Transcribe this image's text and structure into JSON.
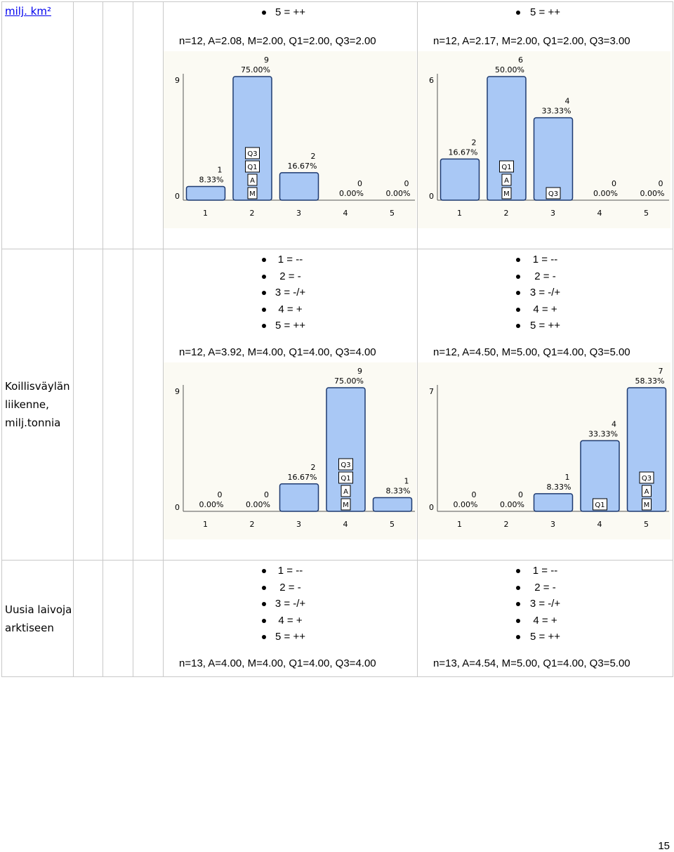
{
  "rows": [
    {
      "label": "milj. km²",
      "label_is_link": true,
      "cells": [
        {
          "scale": [
            "5 = ++"
          ],
          "stats": "n=12, A=2.08, M=2.00, Q1=2.00, Q3=2.00",
          "chart_data": {
            "type": "bar",
            "categories": [
              "1",
              "2",
              "3",
              "4",
              "5"
            ],
            "counts": [
              1,
              9,
              2,
              0,
              0
            ],
            "percents": [
              "8.33%",
              "75.00%",
              "16.67%",
              "0.00%",
              "0.00%"
            ],
            "ylim": [
              0,
              9
            ],
            "y_ticks": [
              "0",
              "9"
            ],
            "markers": {
              "2": [
                "Q3",
                "Q1",
                "A",
                "M"
              ]
            }
          }
        },
        {
          "scale": [
            "5 = ++"
          ],
          "stats": "n=12, A=2.17, M=2.00, Q1=2.00, Q3=3.00",
          "chart_data": {
            "type": "bar",
            "categories": [
              "1",
              "2",
              "3",
              "4",
              "5"
            ],
            "counts": [
              2,
              6,
              4,
              0,
              0
            ],
            "percents": [
              "16.67%",
              "50.00%",
              "33.33%",
              "0.00%",
              "0.00%"
            ],
            "ylim": [
              0,
              6
            ],
            "y_ticks": [
              "0",
              "6"
            ],
            "markers": {
              "2": [
                "Q1",
                "A",
                "M"
              ],
              "3": [
                "Q3"
              ]
            }
          }
        }
      ]
    },
    {
      "label": "Koillisväylän liikenne, milj.tonnia",
      "label_is_link": false,
      "cells": [
        {
          "scale": [
            "1 = --",
            "2 = -",
            "3 = -/+",
            "4 = +",
            "5 = ++"
          ],
          "stats": "n=12, A=3.92, M=4.00, Q1=4.00, Q3=4.00",
          "chart_data": {
            "type": "bar",
            "categories": [
              "1",
              "2",
              "3",
              "4",
              "5"
            ],
            "counts": [
              0,
              0,
              2,
              9,
              1
            ],
            "percents": [
              "0.00%",
              "0.00%",
              "16.67%",
              "75.00%",
              "8.33%"
            ],
            "ylim": [
              0,
              9
            ],
            "y_ticks": [
              "0",
              "9"
            ],
            "markers": {
              "4": [
                "Q3",
                "Q1",
                "A",
                "M"
              ]
            }
          }
        },
        {
          "scale": [
            "1 = --",
            "2 = -",
            "3 = -/+",
            "4 = +",
            "5 = ++"
          ],
          "stats": "n=12, A=4.50, M=5.00, Q1=4.00, Q3=5.00",
          "chart_data": {
            "type": "bar",
            "categories": [
              "1",
              "2",
              "3",
              "4",
              "5"
            ],
            "counts": [
              0,
              0,
              1,
              4,
              7
            ],
            "percents": [
              "0.00%",
              "0.00%",
              "8.33%",
              "33.33%",
              "58.33%"
            ],
            "ylim": [
              0,
              7
            ],
            "y_ticks": [
              "0",
              "7"
            ],
            "markers": {
              "4": [
                "Q1"
              ],
              "5": [
                "Q3",
                "A",
                "M"
              ]
            }
          }
        }
      ]
    },
    {
      "label": "Uusia laivoja arktiseen",
      "label_is_link": false,
      "cells": [
        {
          "scale": [
            "1 = --",
            "2 = -",
            "3 = -/+",
            "4 = +",
            "5 = ++"
          ],
          "stats": "n=13, A=4.00, M=4.00, Q1=4.00, Q3=4.00"
        },
        {
          "scale": [
            "1 = --",
            "2 = -",
            "3 = -/+",
            "4 = +",
            "5 = ++"
          ],
          "stats": "n=13, A=4.54, M=5.00, Q1=4.00, Q3=5.00"
        }
      ]
    }
  ],
  "colors": {
    "bar_fill": "#a9c8f5",
    "bar_stroke": "#1e3a70",
    "chart_bg": "#fbfaf3",
    "border": "#c8c8c8",
    "link": "#0000ee"
  },
  "page_number": "15"
}
